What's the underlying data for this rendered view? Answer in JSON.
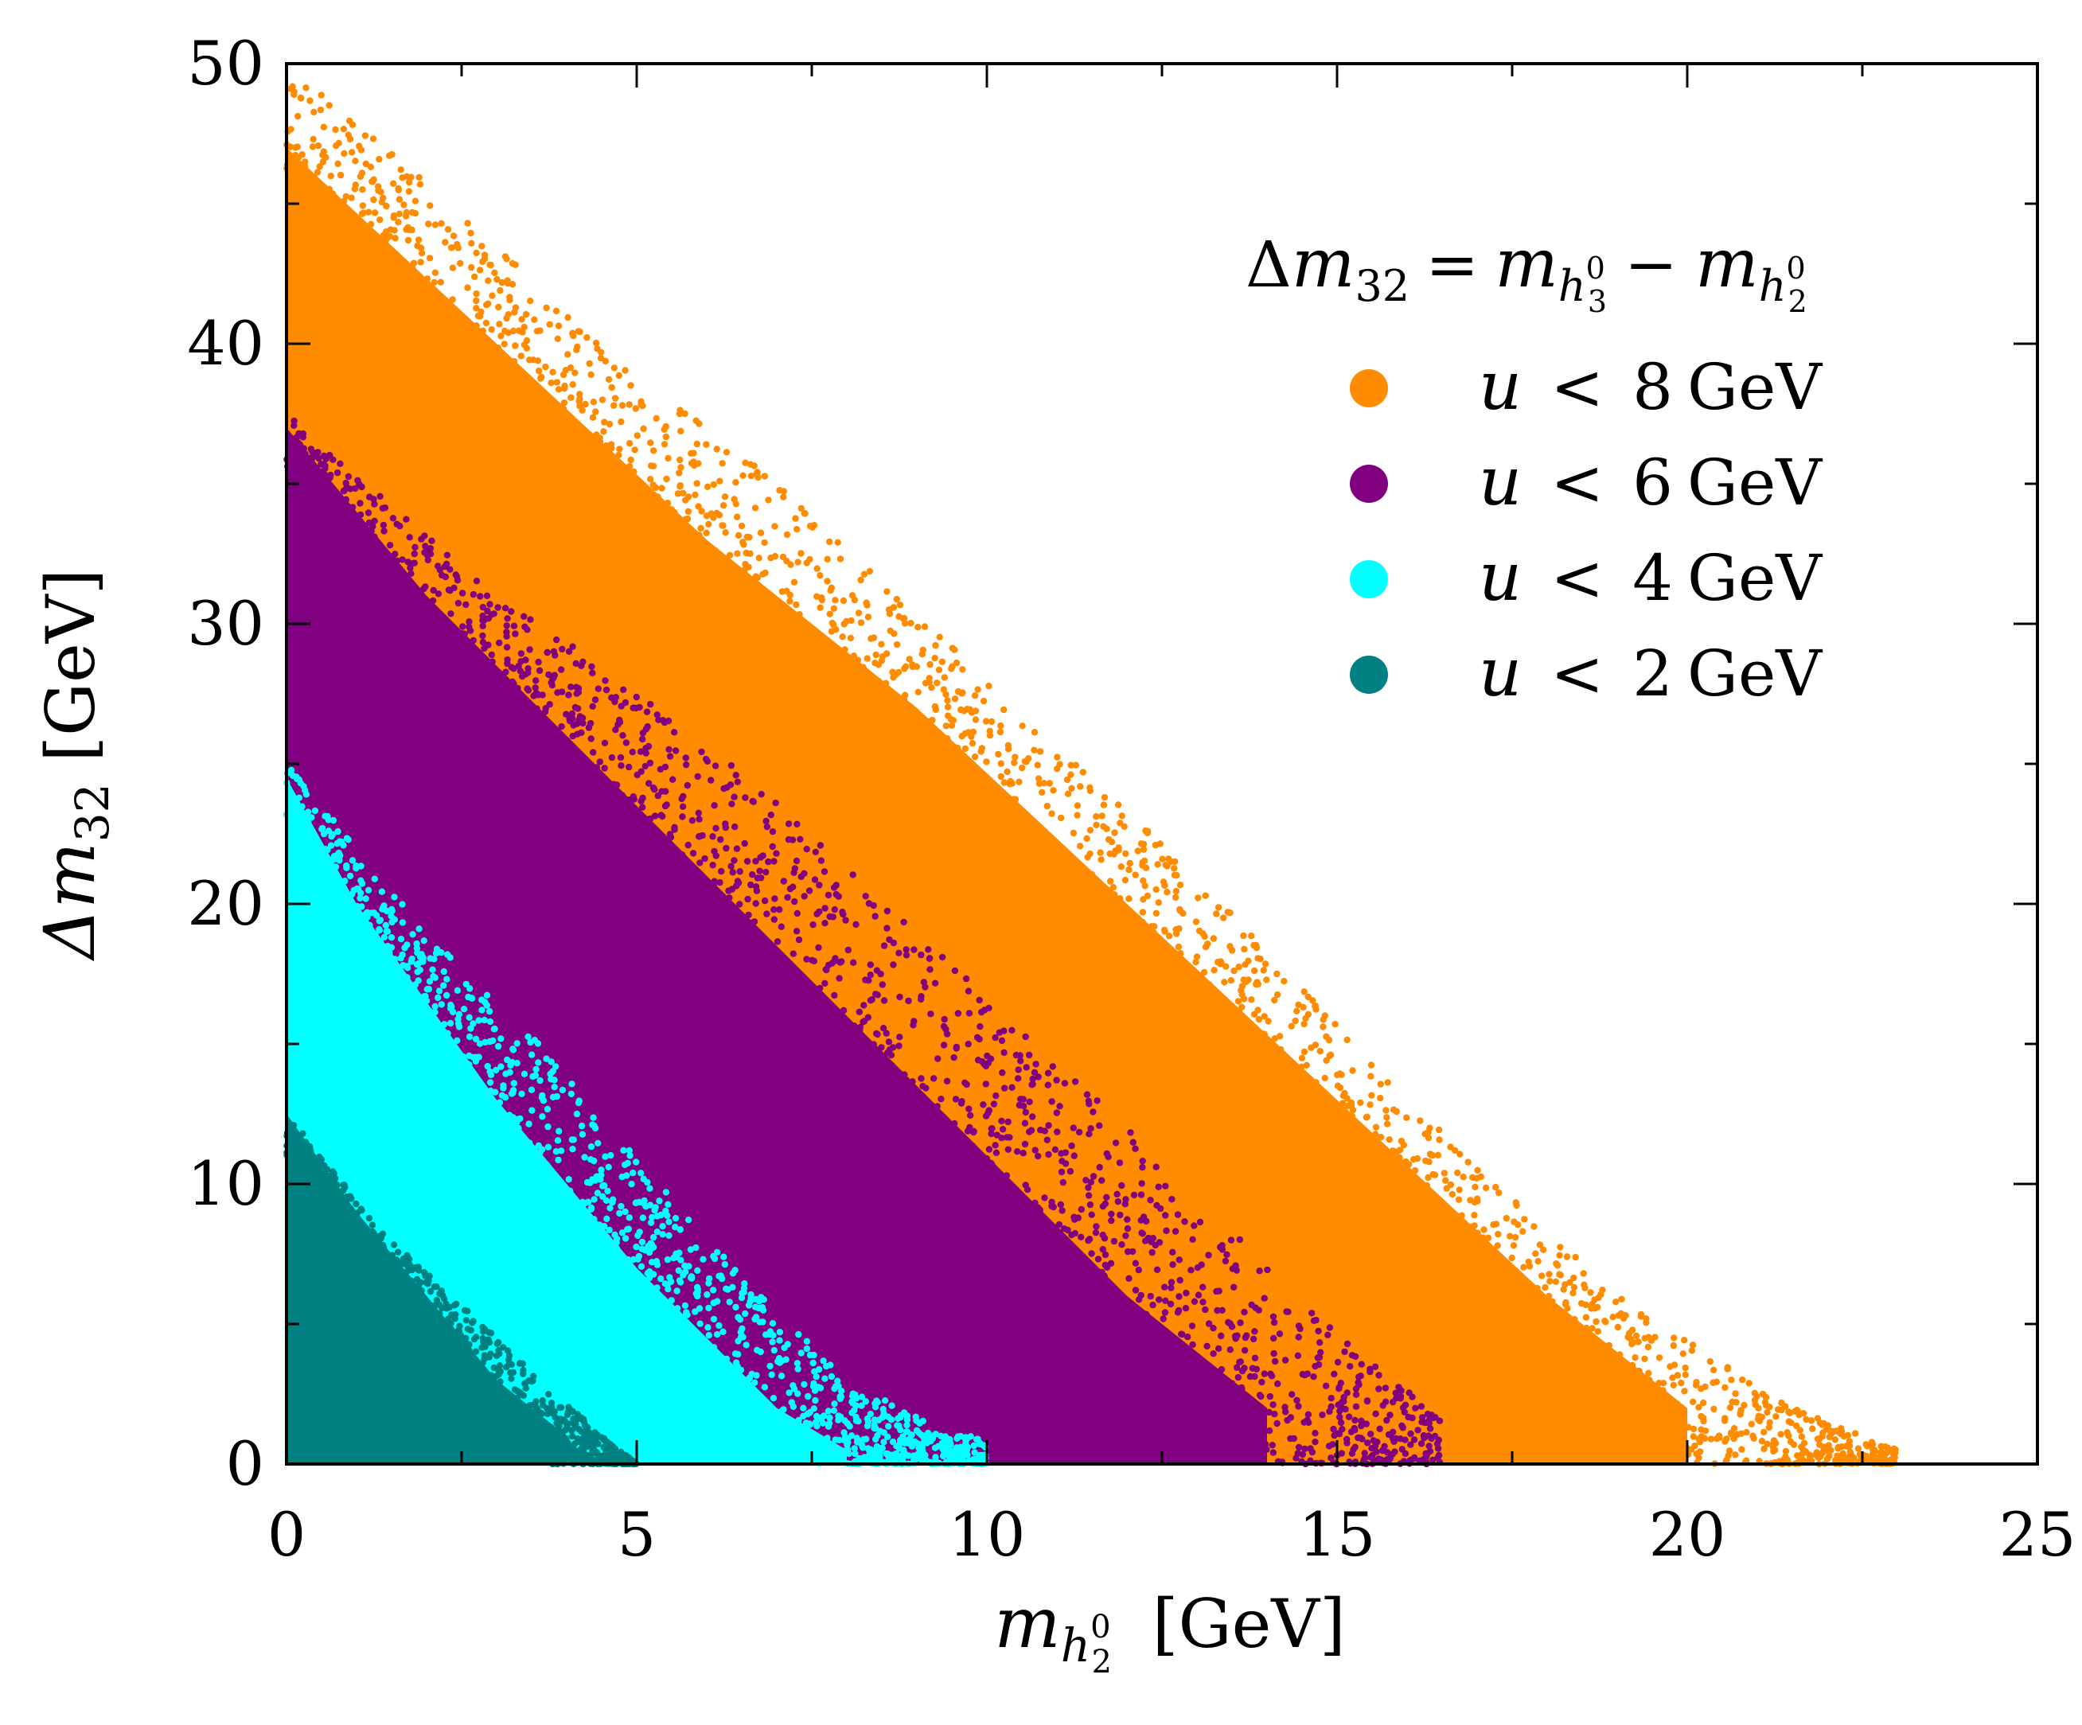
{
  "chart_data": {
    "type": "scatter",
    "title": "",
    "xlabel": "m_{h_2^0} [GeV]",
    "ylabel": "Δm_32 [GeV]",
    "xlim": [
      0,
      25
    ],
    "ylim": [
      0,
      50
    ],
    "x_ticks": [
      0,
      5,
      10,
      15,
      20,
      25
    ],
    "y_ticks": [
      0,
      10,
      20,
      30,
      40,
      50
    ],
    "x_tick_labels": [
      "0",
      "5",
      "10",
      "15",
      "20",
      "25"
    ],
    "y_tick_labels": [
      "0",
      "10",
      "20",
      "30",
      "40",
      "50"
    ],
    "x_label": {
      "symbol": "m",
      "subscript": "h",
      "sub_subscript": "2",
      "superscript": "0",
      "unit": "[GeV]"
    },
    "y_label": {
      "symbol": "Δm",
      "subscript": "32",
      "unit": "[GeV]"
    },
    "legend": {
      "position": "top-right",
      "header": {
        "lhs": "Δm",
        "lhs_sub": "32",
        "eq": "=",
        "m": "m",
        "h": "h",
        "minus": "−",
        "sub_a": "3",
        "sub_b": "2",
        "sup": "0"
      },
      "entries": [
        {
          "var": "u",
          "op": "<",
          "value": "8",
          "unit": "GeV",
          "color": "#ff8c00"
        },
        {
          "var": "u",
          "op": "<",
          "value": "6",
          "unit": "GeV",
          "color": "#800080"
        },
        {
          "var": "u",
          "op": "<",
          "value": "4",
          "unit": "GeV",
          "color": "#00ffff"
        },
        {
          "var": "u",
          "op": "<",
          "value": "2",
          "unit": "GeV",
          "color": "#008080"
        }
      ]
    },
    "series": [
      {
        "name": "u < 8 GeV",
        "color": "#ff8c00",
        "region": {
          "lower_boundary": [
            [
              0,
              0
            ],
            [
              16.5,
              0
            ]
          ],
          "dense_upper_boundary": [
            [
              0,
              47
            ],
            [
              3,
              40
            ],
            [
              6,
              33
            ],
            [
              9,
              27
            ],
            [
              12,
              20
            ],
            [
              15,
              13
            ],
            [
              18,
              6
            ],
            [
              20,
              2
            ]
          ],
          "max_upper_boundary": [
            [
              0,
              50
            ],
            [
              2,
              46
            ],
            [
              4,
              41
            ],
            [
              7,
              35
            ],
            [
              10,
              28
            ],
            [
              13,
              21
            ],
            [
              16,
              13
            ],
            [
              19,
              6
            ],
            [
              21.5,
              2
            ],
            [
              23,
              0.5
            ]
          ],
          "max_x": 23
        }
      },
      {
        "name": "u < 6 GeV",
        "color": "#800080",
        "region": {
          "lower_boundary": [
            [
              0,
              0
            ],
            [
              14,
              0
            ]
          ],
          "dense_upper_boundary": [
            [
              0,
              37
            ],
            [
              2,
              31
            ],
            [
              4,
              26
            ],
            [
              6,
              21
            ],
            [
              8,
              16
            ],
            [
              10,
              11
            ],
            [
              12,
              6
            ],
            [
              14,
              2
            ]
          ],
          "max_upper_boundary": [
            [
              0,
              37.5
            ],
            [
              3,
              31
            ],
            [
              6,
              26
            ],
            [
              9,
              19
            ],
            [
              12,
              12
            ],
            [
              14.5,
              6
            ],
            [
              16.5,
              1.5
            ]
          ],
          "max_x": 16.5
        }
      },
      {
        "name": "u < 4 GeV",
        "color": "#00ffff",
        "region": {
          "lower_boundary": [
            [
              0,
              0
            ],
            [
              9,
              0
            ]
          ],
          "dense_upper_boundary": [
            [
              0,
              24.5
            ],
            [
              1,
              20
            ],
            [
              2,
              16.5
            ],
            [
              3,
              13
            ],
            [
              4,
              10
            ],
            [
              5,
              7
            ],
            [
              6,
              4.5
            ],
            [
              7,
              2
            ],
            [
              8,
              0.5
            ]
          ],
          "max_upper_boundary": [
            [
              0,
              25
            ],
            [
              2,
              19
            ],
            [
              4,
              14
            ],
            [
              6,
              8
            ],
            [
              8,
              3
            ],
            [
              9.5,
              1
            ]
          ],
          "max_x": 10
        }
      },
      {
        "name": "u < 2 GeV",
        "color": "#008080",
        "region": {
          "lower_boundary": [
            [
              0,
              0
            ],
            [
              4,
              0
            ]
          ],
          "dense_upper_boundary": [
            [
              0,
              12.5
            ],
            [
              1,
              9
            ],
            [
              2,
              6
            ],
            [
              3,
              3
            ],
            [
              4,
              1
            ]
          ],
          "max_upper_boundary": [
            [
              0,
              12.5
            ],
            [
              1.5,
              8
            ],
            [
              3,
              4.5
            ],
            [
              4.5,
              1
            ],
            [
              5,
              0
            ]
          ],
          "max_x": 5
        }
      }
    ]
  }
}
